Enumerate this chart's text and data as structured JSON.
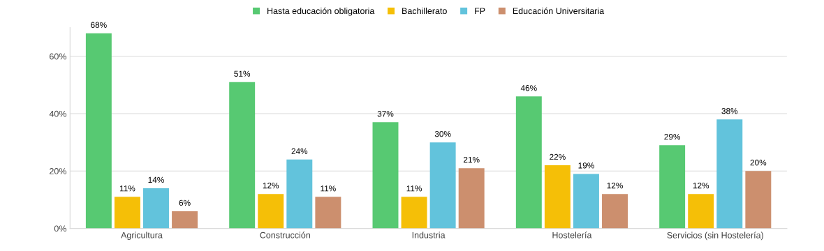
{
  "chart_data": {
    "type": "bar",
    "categories": [
      "Agricultura",
      "Construcción",
      "Industria",
      "Hostelería",
      "Servicios (sin Hostelería)"
    ],
    "series": [
      {
        "name": "Hasta educación obligatoria",
        "color": "#57c972",
        "values": [
          68,
          51,
          37,
          46,
          29
        ],
        "value_labels": [
          "68%",
          "51%",
          "37%",
          "46%",
          "29%"
        ]
      },
      {
        "name": "Bachillerato",
        "color": "#f5bf07",
        "values": [
          11,
          12,
          11,
          22,
          12
        ],
        "value_labels": [
          "11%",
          "12%",
          "11%",
          "22%",
          "12%"
        ]
      },
      {
        "name": "FP",
        "color": "#62c3dc",
        "values": [
          14,
          24,
          30,
          19,
          38
        ],
        "value_labels": [
          "14%",
          "24%",
          "30%",
          "19%",
          "38%"
        ]
      },
      {
        "name": "Educación Universitaria",
        "color": "#cc8f6e",
        "values": [
          6,
          11,
          21,
          12,
          20
        ],
        "value_labels": [
          "6%",
          "11%",
          "21%",
          "12%",
          "20%"
        ]
      }
    ],
    "ylim": [
      0,
      70
    ],
    "yticks": [
      {
        "value": 0,
        "label": "0%"
      },
      {
        "value": 20,
        "label": "20%"
      },
      {
        "value": 40,
        "label": "40%"
      },
      {
        "value": 60,
        "label": "60%"
      }
    ],
    "grid": "y",
    "legend": "top"
  }
}
